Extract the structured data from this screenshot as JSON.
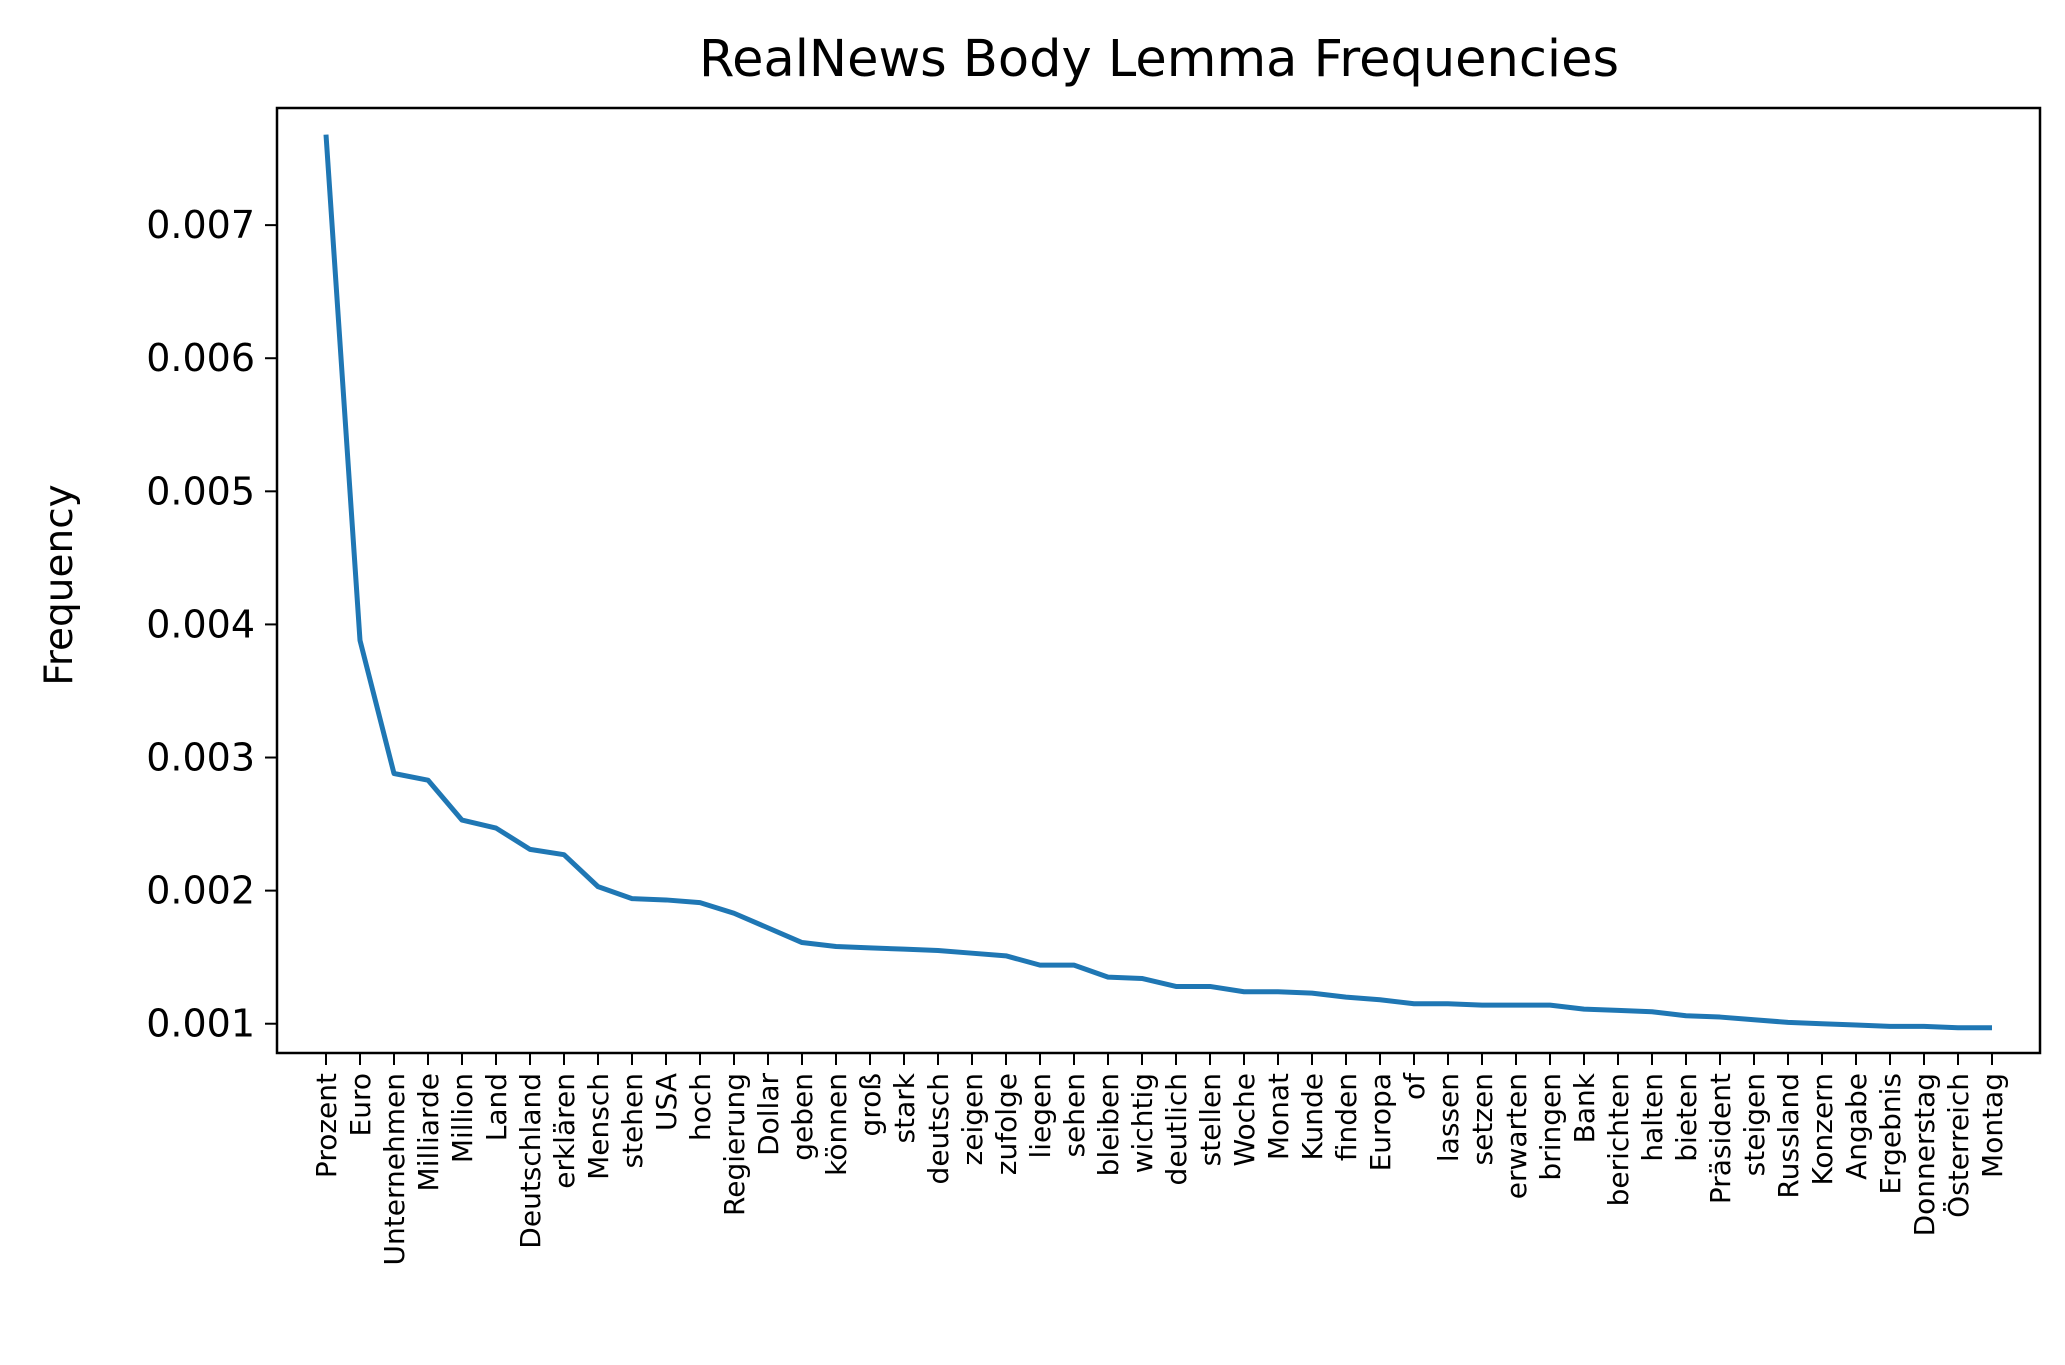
{
  "chart_data": {
    "type": "line",
    "title": "RealNews Body Lemma Frequencies",
    "xlabel": "",
    "ylabel": "Frequency",
    "ylim": [
      0.00078,
      0.00788
    ],
    "yticks": [
      0.001,
      0.002,
      0.003,
      0.004,
      0.005,
      0.006,
      0.007
    ],
    "ytick_labels": [
      "0.001",
      "0.002",
      "0.003",
      "0.004",
      "0.005",
      "0.006",
      "0.007"
    ],
    "grid": false,
    "line_color": "#1f77b4",
    "categories": [
      "Prozent",
      "Euro",
      "Unternehmen",
      "Milliarde",
      "Million",
      "Land",
      "Deutschland",
      "erklären",
      "Mensch",
      "stehen",
      "USA",
      "hoch",
      "Regierung",
      "Dollar",
      "geben",
      "können",
      "groß",
      "stark",
      "deutsch",
      "zeigen",
      "zufolge",
      "liegen",
      "sehen",
      "bleiben",
      "wichtig",
      "deutlich",
      "stellen",
      "Woche",
      "Monat",
      "Kunde",
      "finden",
      "Europa",
      "of",
      "lassen",
      "setzen",
      "erwarten",
      "bringen",
      "Bank",
      "berichten",
      "halten",
      "bieten",
      "Präsident",
      "steigen",
      "Russland",
      "Konzern",
      "Angabe",
      "Ergebnis",
      "Donnerstag",
      "Österreich",
      "Montag"
    ],
    "series": [
      {
        "values": [
          0.00768,
          0.00388,
          0.00288,
          0.00283,
          0.00253,
          0.00247,
          0.00231,
          0.00227,
          0.00203,
          0.00194,
          0.00193,
          0.00191,
          0.00183,
          0.00172,
          0.00161,
          0.00158,
          0.00157,
          0.00156,
          0.00155,
          0.00153,
          0.00151,
          0.00144,
          0.00144,
          0.00135,
          0.00134,
          0.00128,
          0.00128,
          0.00124,
          0.00124,
          0.00123,
          0.0012,
          0.00118,
          0.00115,
          0.00115,
          0.00114,
          0.00114,
          0.00114,
          0.00111,
          0.0011,
          0.00109,
          0.00106,
          0.00105,
          0.00103,
          0.00101,
          0.001,
          0.00099,
          0.00098,
          0.00098,
          0.00097,
          0.00097
        ]
      }
    ]
  }
}
